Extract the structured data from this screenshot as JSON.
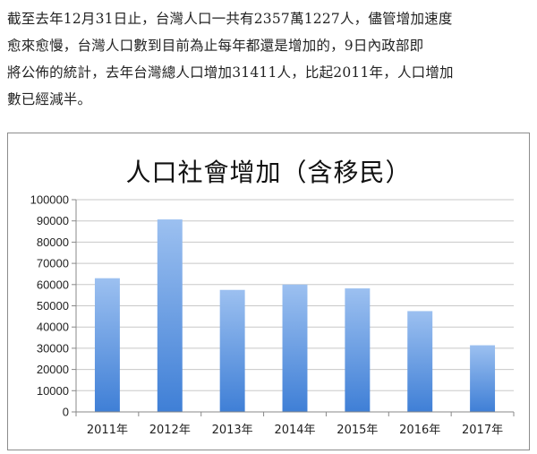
{
  "article": {
    "lines": [
      "截至去年12月31日止，台灣人口一共有2357萬1227人，儘管增加速度",
      "愈來愈慢，台灣人口數到目前為止每年都還是增加的，9日內政部即",
      "將公佈的統計，去年台灣總人口增加31411人，比起2011年，人口增加",
      "數已經減半。"
    ]
  },
  "chart_data": {
    "type": "bar",
    "title": "人口社會增加（含移民）",
    "categories": [
      "2011年",
      "2012年",
      "2013年",
      "2014年",
      "2015年",
      "2016年",
      "2017年"
    ],
    "values": [
      63000,
      90700,
      57500,
      60000,
      58200,
      47500,
      31411
    ],
    "ylim": [
      0,
      100000
    ],
    "yticks": [
      0,
      10000,
      20000,
      30000,
      40000,
      50000,
      60000,
      70000,
      80000,
      90000,
      100000
    ],
    "grid": true,
    "legend": "none",
    "bar_color_top": "#9cc0f0",
    "bar_color_bottom": "#3f7fd6"
  }
}
